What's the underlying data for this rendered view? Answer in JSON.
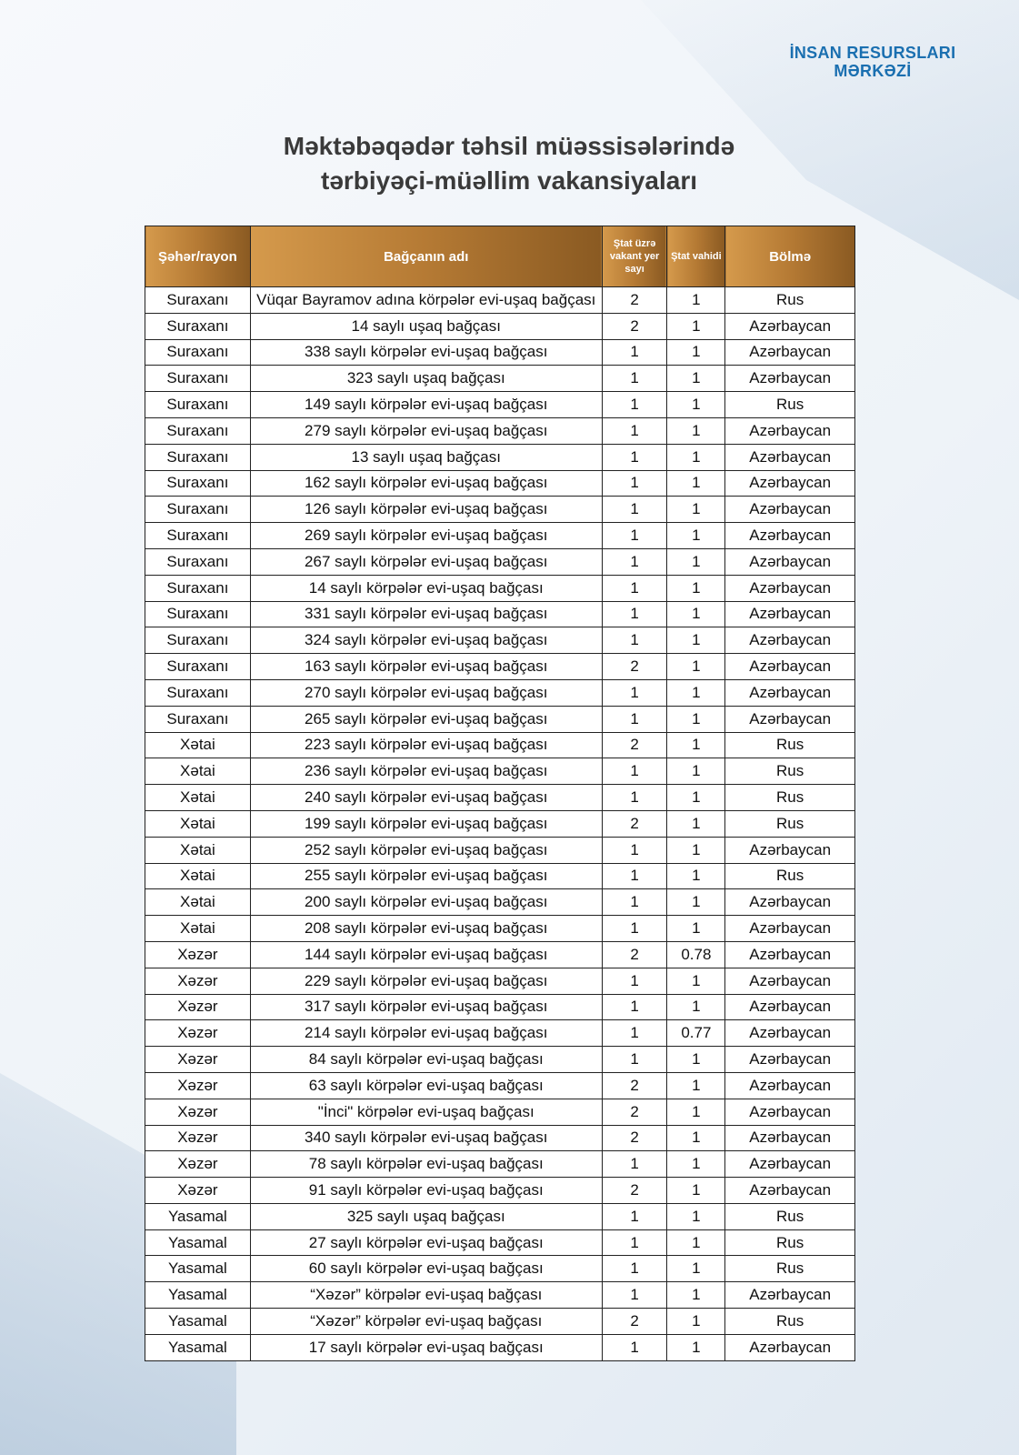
{
  "brand": {
    "line1": "İNSAN RESURSLARI",
    "line2": "MƏRKƏZİ"
  },
  "title": {
    "line1": "Məktəbəqədər təhsil müəssisələrində",
    "line2": "tərbiyəçi-müəllim vakansiyaları"
  },
  "table": {
    "headers": [
      "Şəhər/rayon",
      "Bağçanın adı",
      "Ştat üzrə vakant yer sayı",
      "Ştat vahidi",
      "Bölmə"
    ],
    "rows": [
      [
        "Suraxanı",
        "Vüqar Bayramov adına körpələr evi-uşaq bağçası",
        "2",
        "1",
        "Rus"
      ],
      [
        "Suraxanı",
        "14 saylı uşaq bağçası",
        "2",
        "1",
        "Azərbaycan"
      ],
      [
        "Suraxanı",
        "338 saylı körpələr evi-uşaq bağçası",
        "1",
        "1",
        "Azərbaycan"
      ],
      [
        "Suraxanı",
        "323 saylı uşaq bağçası",
        "1",
        "1",
        "Azərbaycan"
      ],
      [
        "Suraxanı",
        "149 saylı körpələr evi-uşaq bağçası",
        "1",
        "1",
        "Rus"
      ],
      [
        "Suraxanı",
        "279 saylı körpələr evi-uşaq bağçası",
        "1",
        "1",
        "Azərbaycan"
      ],
      [
        "Suraxanı",
        "13 saylı uşaq bağçası",
        "1",
        "1",
        "Azərbaycan"
      ],
      [
        "Suraxanı",
        "162 saylı körpələr evi-uşaq bağçası",
        "1",
        "1",
        "Azərbaycan"
      ],
      [
        "Suraxanı",
        "126 saylı körpələr evi-uşaq bağçası",
        "1",
        "1",
        "Azərbaycan"
      ],
      [
        "Suraxanı",
        "269 saylı körpələr evi-uşaq bağçası",
        "1",
        "1",
        "Azərbaycan"
      ],
      [
        "Suraxanı",
        "267 saylı körpələr evi-uşaq bağçası",
        "1",
        "1",
        "Azərbaycan"
      ],
      [
        "Suraxanı",
        "14 saylı körpələr evi-uşaq bağçası",
        "1",
        "1",
        "Azərbaycan"
      ],
      [
        "Suraxanı",
        "331 saylı körpələr evi-uşaq bağçası",
        "1",
        "1",
        "Azərbaycan"
      ],
      [
        "Suraxanı",
        "324 saylı körpələr evi-uşaq bağçası",
        "1",
        "1",
        "Azərbaycan"
      ],
      [
        "Suraxanı",
        "163 saylı körpələr evi-uşaq bağçası",
        "2",
        "1",
        "Azərbaycan"
      ],
      [
        "Suraxanı",
        "270 saylı körpələr evi-uşaq bağçası",
        "1",
        "1",
        "Azərbaycan"
      ],
      [
        "Suraxanı",
        "265 saylı körpələr evi-uşaq bağçası",
        "1",
        "1",
        "Azərbaycan"
      ],
      [
        "Xətai",
        "223 saylı körpələr evi-uşaq bağçası",
        "2",
        "1",
        "Rus"
      ],
      [
        "Xətai",
        "236 saylı körpələr evi-uşaq bağçası",
        "1",
        "1",
        "Rus"
      ],
      [
        "Xətai",
        "240 saylı körpələr evi-uşaq bağçası",
        "1",
        "1",
        "Rus"
      ],
      [
        "Xətai",
        "199 saylı körpələr evi-uşaq bağçası",
        "2",
        "1",
        "Rus"
      ],
      [
        "Xətai",
        "252 saylı körpələr evi-uşaq bağçası",
        "1",
        "1",
        "Azərbaycan"
      ],
      [
        "Xətai",
        "255 saylı körpələr evi-uşaq bağçası",
        "1",
        "1",
        "Rus"
      ],
      [
        "Xətai",
        "200 saylı körpələr evi-uşaq bağçası",
        "1",
        "1",
        "Azərbaycan"
      ],
      [
        "Xətai",
        "208 saylı körpələr evi-uşaq bağçası",
        "1",
        "1",
        "Azərbaycan"
      ],
      [
        "Xəzər",
        "144 saylı körpələr evi-uşaq bağçası",
        "2",
        "0.78",
        "Azərbaycan"
      ],
      [
        "Xəzər",
        "229 saylı körpələr evi-uşaq bağçası",
        "1",
        "1",
        "Azərbaycan"
      ],
      [
        "Xəzər",
        "317 saylı körpələr evi-uşaq bağçası",
        "1",
        "1",
        "Azərbaycan"
      ],
      [
        "Xəzər",
        "214 saylı körpələr evi-uşaq bağçası",
        "1",
        "0.77",
        "Azərbaycan"
      ],
      [
        "Xəzər",
        "84 saylı körpələr evi-uşaq bağçası",
        "1",
        "1",
        "Azərbaycan"
      ],
      [
        "Xəzər",
        "63 saylı körpələr evi-uşaq bağçası",
        "2",
        "1",
        "Azərbaycan"
      ],
      [
        "Xəzər",
        "\"İnci\" körpələr evi-uşaq bağçası",
        "2",
        "1",
        "Azərbaycan"
      ],
      [
        "Xəzər",
        "340 saylı körpələr evi-uşaq bağçası",
        "2",
        "1",
        "Azərbaycan"
      ],
      [
        "Xəzər",
        "78 saylı körpələr evi-uşaq bağçası",
        "1",
        "1",
        "Azərbaycan"
      ],
      [
        "Xəzər",
        "91 saylı körpələr evi-uşaq bağçası",
        "2",
        "1",
        "Azərbaycan"
      ],
      [
        "Yasamal",
        "325 saylı uşaq bağçası",
        "1",
        "1",
        "Rus"
      ],
      [
        "Yasamal",
        "27 saylı körpələr evi-uşaq bağçası",
        "1",
        "1",
        "Rus"
      ],
      [
        "Yasamal",
        "60 saylı körpələr evi-uşaq bağçası",
        "1",
        "1",
        "Rus"
      ],
      [
        "Yasamal",
        "“Xəzər” körpələr evi-uşaq bağçası",
        "1",
        "1",
        "Azərbaycan"
      ],
      [
        "Yasamal",
        "“Xəzər” körpələr evi-uşaq bağçası",
        "2",
        "1",
        "Rus"
      ],
      [
        "Yasamal",
        "17 saylı körpələr evi-uşaq bağçası",
        "1",
        "1",
        "Azərbaycan"
      ]
    ]
  }
}
